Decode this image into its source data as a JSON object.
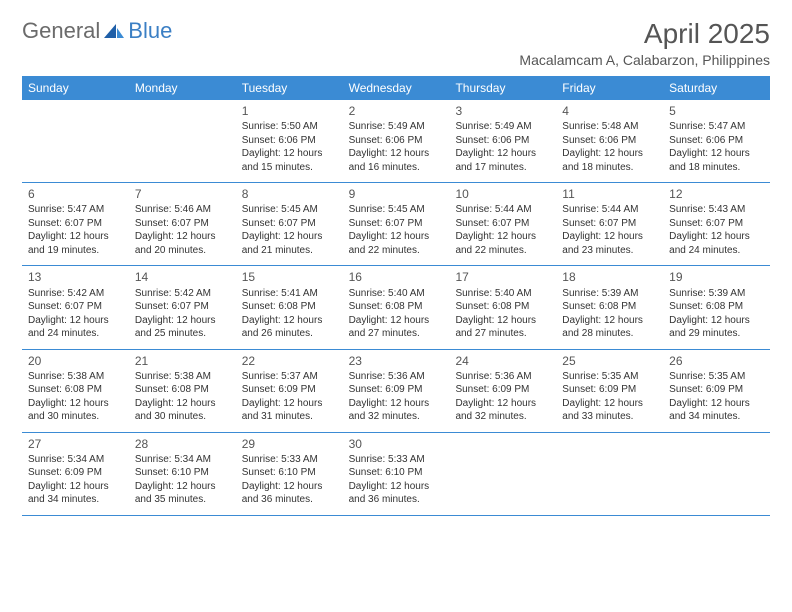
{
  "logo": {
    "text1": "General",
    "text2": "Blue"
  },
  "title": "April 2025",
  "location": "Macalamcam A, Calabarzon, Philippines",
  "weekdays": [
    "Sunday",
    "Monday",
    "Tuesday",
    "Wednesday",
    "Thursday",
    "Friday",
    "Saturday"
  ],
  "colors": {
    "header_bg": "#3b8bd4",
    "header_text": "#ffffff",
    "border": "#3b8bd4",
    "text": "#333333",
    "title_text": "#555555",
    "logo_gray": "#6b6b6b",
    "logo_blue": "#3b7fc4",
    "background": "#ffffff"
  },
  "fonts": {
    "month_title_pt": 28,
    "location_pt": 14,
    "weekday_pt": 12,
    "daynum_pt": 12,
    "body_pt": 10
  },
  "weeks": [
    [
      null,
      null,
      {
        "n": "1",
        "sr": "Sunrise: 5:50 AM",
        "ss": "Sunset: 6:06 PM",
        "d1": "Daylight: 12 hours",
        "d2": "and 15 minutes."
      },
      {
        "n": "2",
        "sr": "Sunrise: 5:49 AM",
        "ss": "Sunset: 6:06 PM",
        "d1": "Daylight: 12 hours",
        "d2": "and 16 minutes."
      },
      {
        "n": "3",
        "sr": "Sunrise: 5:49 AM",
        "ss": "Sunset: 6:06 PM",
        "d1": "Daylight: 12 hours",
        "d2": "and 17 minutes."
      },
      {
        "n": "4",
        "sr": "Sunrise: 5:48 AM",
        "ss": "Sunset: 6:06 PM",
        "d1": "Daylight: 12 hours",
        "d2": "and 18 minutes."
      },
      {
        "n": "5",
        "sr": "Sunrise: 5:47 AM",
        "ss": "Sunset: 6:06 PM",
        "d1": "Daylight: 12 hours",
        "d2": "and 18 minutes."
      }
    ],
    [
      {
        "n": "6",
        "sr": "Sunrise: 5:47 AM",
        "ss": "Sunset: 6:07 PM",
        "d1": "Daylight: 12 hours",
        "d2": "and 19 minutes."
      },
      {
        "n": "7",
        "sr": "Sunrise: 5:46 AM",
        "ss": "Sunset: 6:07 PM",
        "d1": "Daylight: 12 hours",
        "d2": "and 20 minutes."
      },
      {
        "n": "8",
        "sr": "Sunrise: 5:45 AM",
        "ss": "Sunset: 6:07 PM",
        "d1": "Daylight: 12 hours",
        "d2": "and 21 minutes."
      },
      {
        "n": "9",
        "sr": "Sunrise: 5:45 AM",
        "ss": "Sunset: 6:07 PM",
        "d1": "Daylight: 12 hours",
        "d2": "and 22 minutes."
      },
      {
        "n": "10",
        "sr": "Sunrise: 5:44 AM",
        "ss": "Sunset: 6:07 PM",
        "d1": "Daylight: 12 hours",
        "d2": "and 22 minutes."
      },
      {
        "n": "11",
        "sr": "Sunrise: 5:44 AM",
        "ss": "Sunset: 6:07 PM",
        "d1": "Daylight: 12 hours",
        "d2": "and 23 minutes."
      },
      {
        "n": "12",
        "sr": "Sunrise: 5:43 AM",
        "ss": "Sunset: 6:07 PM",
        "d1": "Daylight: 12 hours",
        "d2": "and 24 minutes."
      }
    ],
    [
      {
        "n": "13",
        "sr": "Sunrise: 5:42 AM",
        "ss": "Sunset: 6:07 PM",
        "d1": "Daylight: 12 hours",
        "d2": "and 24 minutes."
      },
      {
        "n": "14",
        "sr": "Sunrise: 5:42 AM",
        "ss": "Sunset: 6:07 PM",
        "d1": "Daylight: 12 hours",
        "d2": "and 25 minutes."
      },
      {
        "n": "15",
        "sr": "Sunrise: 5:41 AM",
        "ss": "Sunset: 6:08 PM",
        "d1": "Daylight: 12 hours",
        "d2": "and 26 minutes."
      },
      {
        "n": "16",
        "sr": "Sunrise: 5:40 AM",
        "ss": "Sunset: 6:08 PM",
        "d1": "Daylight: 12 hours",
        "d2": "and 27 minutes."
      },
      {
        "n": "17",
        "sr": "Sunrise: 5:40 AM",
        "ss": "Sunset: 6:08 PM",
        "d1": "Daylight: 12 hours",
        "d2": "and 27 minutes."
      },
      {
        "n": "18",
        "sr": "Sunrise: 5:39 AM",
        "ss": "Sunset: 6:08 PM",
        "d1": "Daylight: 12 hours",
        "d2": "and 28 minutes."
      },
      {
        "n": "19",
        "sr": "Sunrise: 5:39 AM",
        "ss": "Sunset: 6:08 PM",
        "d1": "Daylight: 12 hours",
        "d2": "and 29 minutes."
      }
    ],
    [
      {
        "n": "20",
        "sr": "Sunrise: 5:38 AM",
        "ss": "Sunset: 6:08 PM",
        "d1": "Daylight: 12 hours",
        "d2": "and 30 minutes."
      },
      {
        "n": "21",
        "sr": "Sunrise: 5:38 AM",
        "ss": "Sunset: 6:08 PM",
        "d1": "Daylight: 12 hours",
        "d2": "and 30 minutes."
      },
      {
        "n": "22",
        "sr": "Sunrise: 5:37 AM",
        "ss": "Sunset: 6:09 PM",
        "d1": "Daylight: 12 hours",
        "d2": "and 31 minutes."
      },
      {
        "n": "23",
        "sr": "Sunrise: 5:36 AM",
        "ss": "Sunset: 6:09 PM",
        "d1": "Daylight: 12 hours",
        "d2": "and 32 minutes."
      },
      {
        "n": "24",
        "sr": "Sunrise: 5:36 AM",
        "ss": "Sunset: 6:09 PM",
        "d1": "Daylight: 12 hours",
        "d2": "and 32 minutes."
      },
      {
        "n": "25",
        "sr": "Sunrise: 5:35 AM",
        "ss": "Sunset: 6:09 PM",
        "d1": "Daylight: 12 hours",
        "d2": "and 33 minutes."
      },
      {
        "n": "26",
        "sr": "Sunrise: 5:35 AM",
        "ss": "Sunset: 6:09 PM",
        "d1": "Daylight: 12 hours",
        "d2": "and 34 minutes."
      }
    ],
    [
      {
        "n": "27",
        "sr": "Sunrise: 5:34 AM",
        "ss": "Sunset: 6:09 PM",
        "d1": "Daylight: 12 hours",
        "d2": "and 34 minutes."
      },
      {
        "n": "28",
        "sr": "Sunrise: 5:34 AM",
        "ss": "Sunset: 6:10 PM",
        "d1": "Daylight: 12 hours",
        "d2": "and 35 minutes."
      },
      {
        "n": "29",
        "sr": "Sunrise: 5:33 AM",
        "ss": "Sunset: 6:10 PM",
        "d1": "Daylight: 12 hours",
        "d2": "and 36 minutes."
      },
      {
        "n": "30",
        "sr": "Sunrise: 5:33 AM",
        "ss": "Sunset: 6:10 PM",
        "d1": "Daylight: 12 hours",
        "d2": "and 36 minutes."
      },
      null,
      null,
      null
    ]
  ]
}
